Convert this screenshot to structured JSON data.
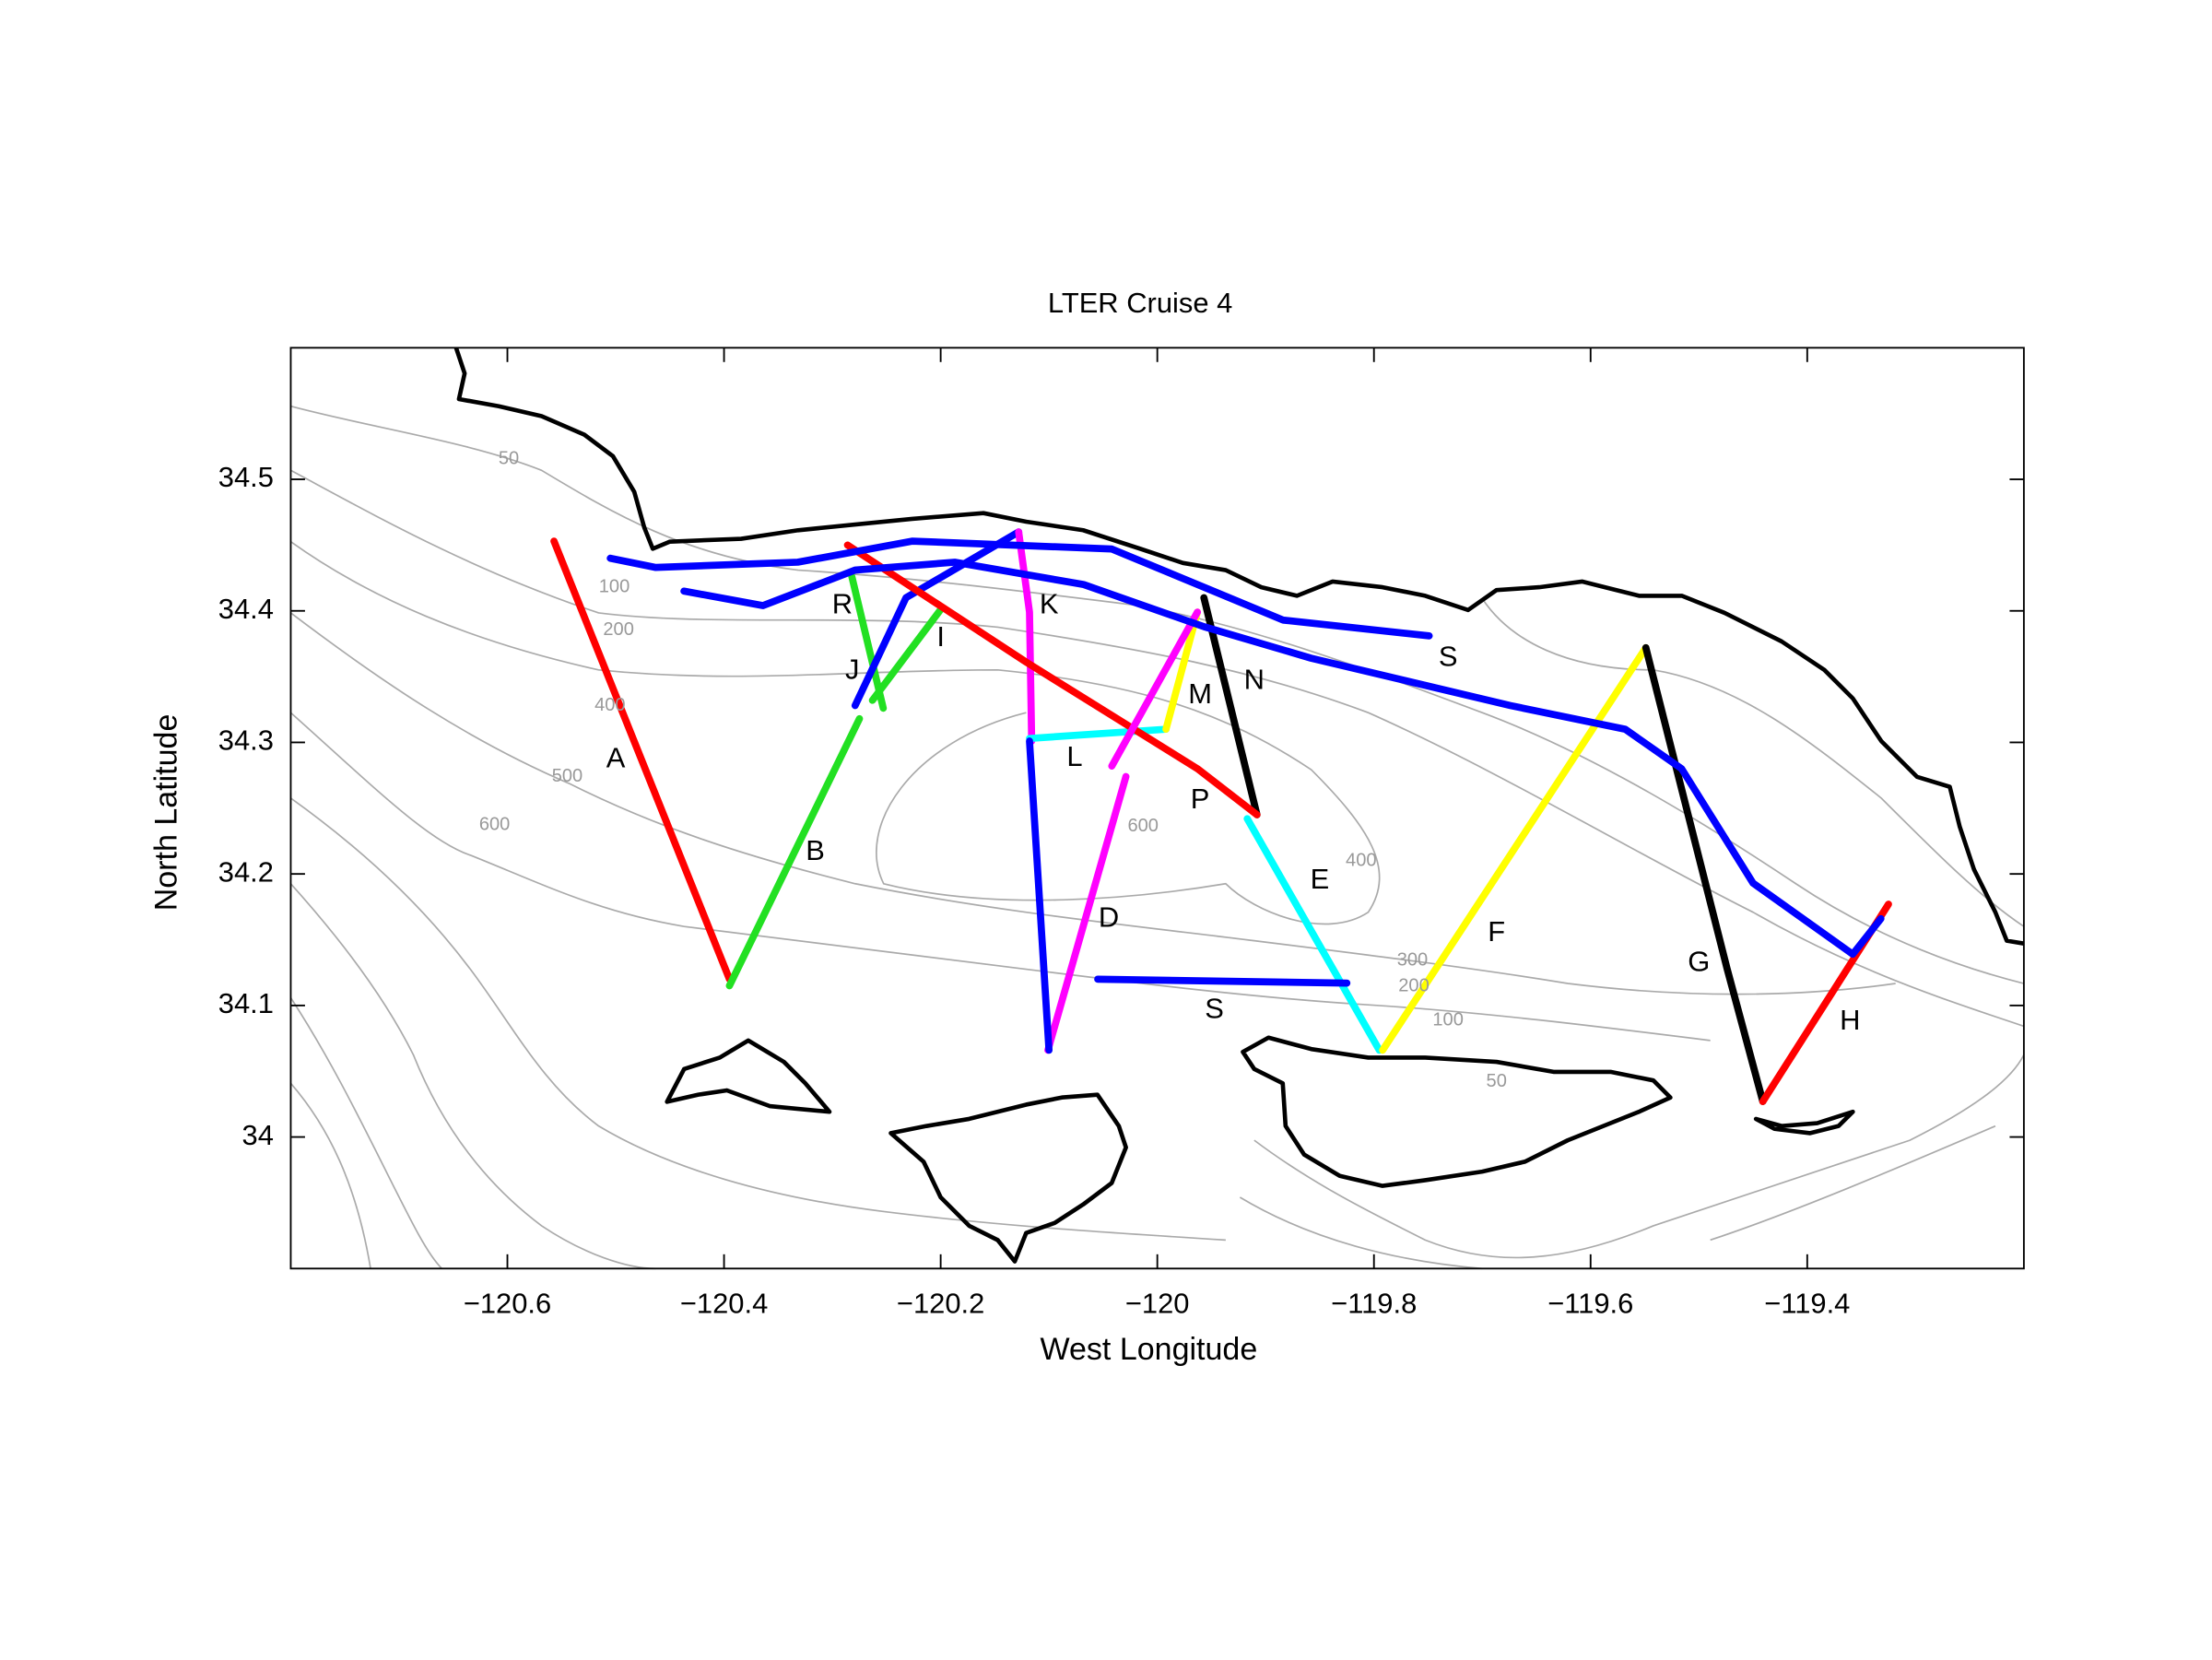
{
  "chart_data": {
    "type": "map",
    "title": "LTER Cruise 4",
    "xlabel": "West Longitude",
    "ylabel": "North Latitude",
    "xlim": [
      -120.8,
      -119.2
    ],
    "ylim": [
      33.9,
      34.6
    ],
    "xticks": [
      {
        "value": -120.6,
        "label": "−120.6"
      },
      {
        "value": -120.4,
        "label": "−120.4"
      },
      {
        "value": -120.2,
        "label": "−120.2"
      },
      {
        "value": -120,
        "label": "−120"
      },
      {
        "value": -119.8,
        "label": "−119.8"
      },
      {
        "value": -119.6,
        "label": "−119.6"
      },
      {
        "value": -119.4,
        "label": "−119.4"
      }
    ],
    "yticks": [
      34,
      34.1,
      34.2,
      34.3,
      34.4,
      34.5
    ],
    "series": [
      {
        "name": "A",
        "color": "#ff0000",
        "x": [
          -120.557,
          -120.395
        ],
        "values": [
          34.453,
          34.12
        ]
      },
      {
        "name": "B",
        "color": "#22e022",
        "x": [
          -120.395,
          -120.275
        ],
        "values": [
          34.115,
          34.318
        ]
      },
      {
        "name": "R",
        "color": "#22e022",
        "x": [
          -120.282,
          -120.253
        ],
        "values": [
          34.426,
          34.326
        ]
      },
      {
        "name": "J",
        "color": "#0000ff",
        "x": [
          -120.279,
          -120.232,
          -120.128
        ],
        "values": [
          34.328,
          34.41,
          34.46
        ]
      },
      {
        "name": "I",
        "color": "#22e022",
        "x": [
          -120.2,
          -120.263
        ],
        "values": [
          34.401,
          34.332
        ]
      },
      {
        "name": "K",
        "color": "#ff00ff",
        "x": [
          -120.128,
          -120.118,
          -120.116
        ],
        "values": [
          34.46,
          34.399,
          34.301
        ]
      },
      {
        "name": "L",
        "color": "#00ffff",
        "x": [
          -120.118,
          -119.992
        ],
        "values": [
          34.303,
          34.31
        ]
      },
      {
        "name": "M",
        "color": "#ffff00",
        "x": [
          -119.992,
          -119.963
        ],
        "values": [
          34.31,
          34.399
        ]
      },
      {
        "name": "N",
        "color": "#000000",
        "x": [
          -119.957,
          -119.908
        ],
        "values": [
          34.41,
          34.245
        ]
      },
      {
        "name": "P",
        "color": "#ff0000",
        "x": [
          -120.286,
          -120.121,
          -119.963,
          -119.908
        ],
        "values": [
          34.45,
          34.361,
          34.28,
          34.245
        ]
      },
      {
        "name": "D",
        "color": "#ff00ff",
        "x": [
          -120.101,
          -120.029,
          null,
          -120.042,
          -119.963
        ],
        "values": [
          34.066,
          34.274,
          null,
          34.282,
          34.399
        ]
      },
      {
        "name": "E",
        "color": "#00ffff",
        "x": [
          -119.917,
          -119.795
        ],
        "values": [
          34.242,
          34.066
        ]
      },
      {
        "name": "F",
        "color": "#ffff00",
        "x": [
          -119.792,
          -119.549
        ],
        "values": [
          34.066,
          34.372
        ]
      },
      {
        "name": "G",
        "color": "#000000",
        "x": [
          -119.549,
          -119.474,
          -119.441
        ],
        "values": [
          34.372,
          34.128,
          34.027
        ]
      },
      {
        "name": "H",
        "color": "#ff0000",
        "x": [
          -119.441,
          -119.325
        ],
        "values": [
          34.027,
          34.177
        ]
      },
      {
        "name": "S",
        "color": "#0000ff",
        "x": [
          -120.505,
          -120.463,
          -120.332,
          -120.226,
          -120.042,
          -119.957,
          -119.884,
          -119.749,
          null,
          -120.437,
          -120.364,
          -120.279,
          -120.187,
          -120.068,
          -119.957,
          -119.858,
          -119.674,
          -119.568,
          -119.516,
          -119.45,
          -119.358,
          -119.332
        ],
        "values": [
          34.44,
          34.433,
          34.437,
          34.453,
          34.447,
          34.418,
          34.393,
          34.381,
          null,
          34.415,
          34.404,
          34.431,
          34.437,
          34.42,
          34.388,
          34.364,
          34.328,
          34.31,
          34.28,
          34.193,
          34.139,
          34.166
        ]
      },
      {
        "name": "S",
        "color": "#0000ff",
        "x": [
          -120.118,
          -120.1,
          null,
          -120.055,
          -119.825
        ],
        "values": [
          34.301,
          34.066,
          null,
          34.12,
          34.117
        ]
      }
    ],
    "contour_labels": [
      "50",
      "100",
      "200",
      "400",
      "500",
      "600",
      "600",
      "400",
      "300",
      "200",
      "100",
      "50"
    ]
  }
}
